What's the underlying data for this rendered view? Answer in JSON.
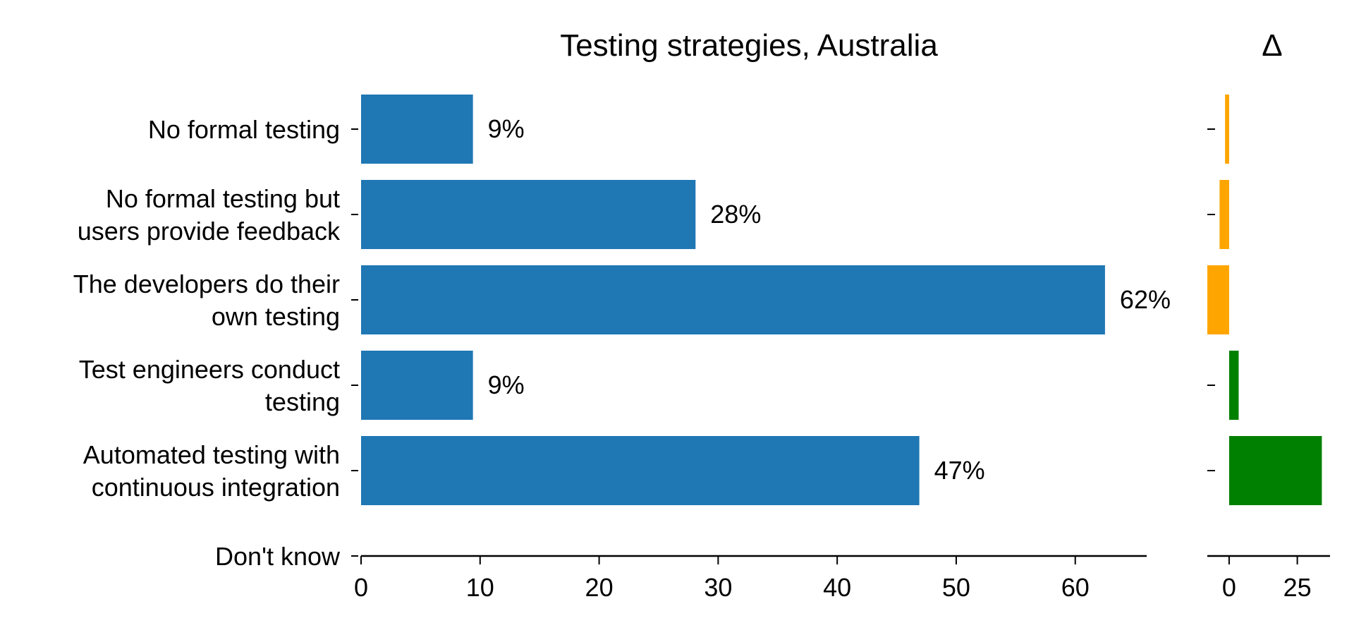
{
  "chart_data": [
    {
      "type": "bar",
      "orientation": "horizontal",
      "title": "Testing strategies, Australia",
      "categories": [
        [
          "No formal testing"
        ],
        [
          "No formal testing but",
          "users provide feedback"
        ],
        [
          "The developers do their",
          "own testing"
        ],
        [
          "Test engineers conduct",
          "testing"
        ],
        [
          "Automated testing with",
          "continuous integration"
        ],
        [
          "Don't know"
        ]
      ],
      "values": [
        9.4,
        28.1,
        62.5,
        9.4,
        46.9,
        null
      ],
      "value_labels": [
        "9%",
        "28%",
        "62%",
        "9%",
        "47%",
        ""
      ],
      "xlim": [
        0,
        66
      ],
      "xticks": [
        0,
        10,
        20,
        30,
        40,
        50,
        60
      ],
      "bar_color": "#1f77b4",
      "xlabel": "",
      "ylabel": ""
    },
    {
      "type": "bar",
      "orientation": "horizontal",
      "title": "Δ",
      "categories_shared_with": "Testing strategies, Australia",
      "values": [
        -1.5,
        -3.5,
        -8.0,
        3.5,
        34.0,
        null
      ],
      "xlim": [
        -8,
        37
      ],
      "xticks": [
        0,
        25
      ],
      "positive_color": "#008000",
      "negative_color": "#ffa500"
    }
  ]
}
